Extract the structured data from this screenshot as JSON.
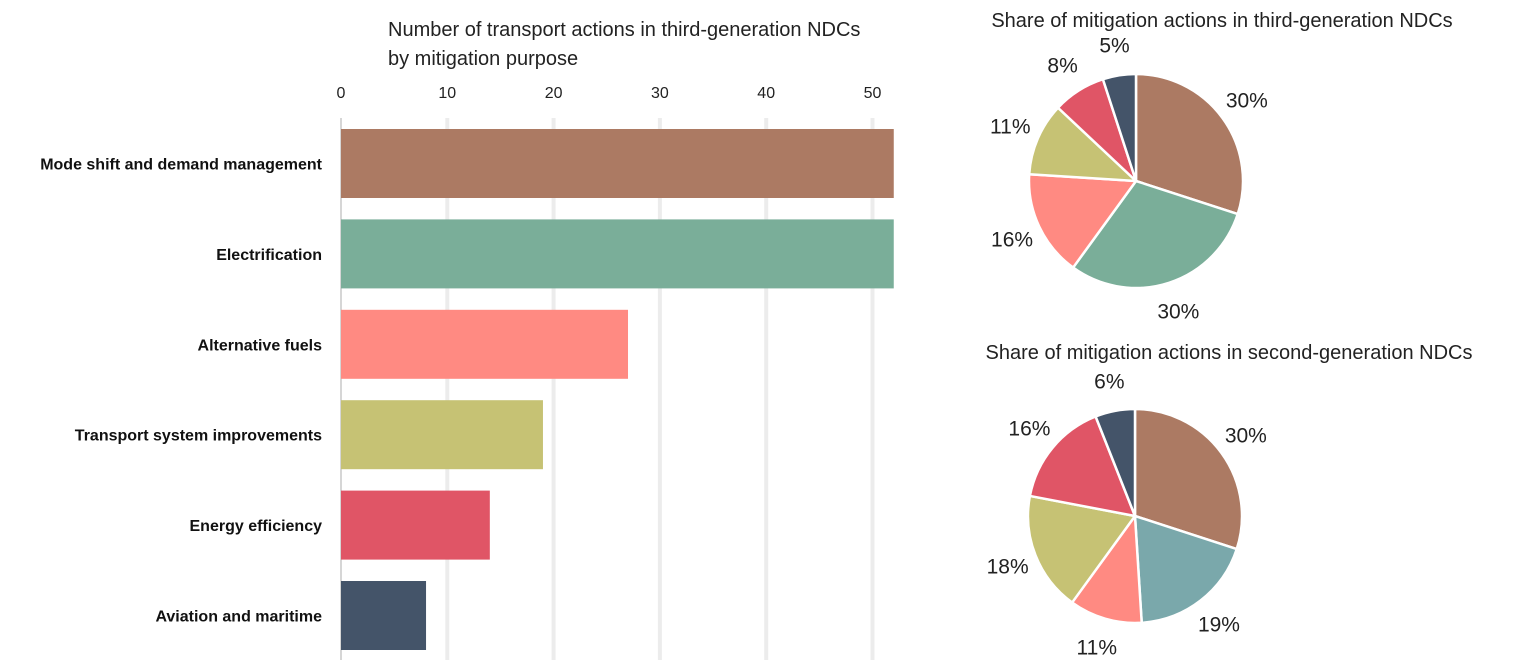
{
  "chart_data": [
    {
      "type": "bar",
      "orientation": "horizontal",
      "title_lines": [
        "Number of transport actions in third-generation NDCs",
        "by mitigation purpose"
      ],
      "categories": [
        "Mode shift and demand management",
        "Electrification",
        "Alternative fuels",
        "Transport system improvements",
        "Energy efficiency",
        "Aviation and maritime"
      ],
      "values": [
        52,
        52,
        27,
        19,
        14,
        8
      ],
      "colors": [
        "#AC7A63",
        "#7AAE99",
        "#FF8A82",
        "#C6C274",
        "#E05566",
        "#445469"
      ],
      "xlim": [
        0,
        52
      ],
      "xticks": [
        0,
        10,
        20,
        30,
        40,
        50
      ],
      "xtick_labels": [
        "0",
        "10",
        "20",
        "30",
        "40",
        "50"
      ],
      "grid": true,
      "axis_position": "top"
    },
    {
      "type": "pie",
      "title": "Share of mitigation actions in third-generation NDCs",
      "values": [
        30,
        30,
        16,
        11,
        8,
        5
      ],
      "labels": [
        "30%",
        "30%",
        "16%",
        "11%",
        "8%",
        "5%"
      ],
      "colors": [
        "#AC7A63",
        "#7AAE99",
        "#FF8A82",
        "#C6C274",
        "#E05566",
        "#445469"
      ]
    },
    {
      "type": "pie",
      "title": "Share of mitigation actions in second-generation NDCs",
      "values": [
        30,
        19,
        11,
        18,
        16,
        6
      ],
      "labels": [
        "30%",
        "19%",
        "11%",
        "18%",
        "16%",
        "6%"
      ],
      "colors": [
        "#AC7A63",
        "#7AA8AB",
        "#FF8A82",
        "#C6C274",
        "#E05566",
        "#445469"
      ]
    }
  ]
}
